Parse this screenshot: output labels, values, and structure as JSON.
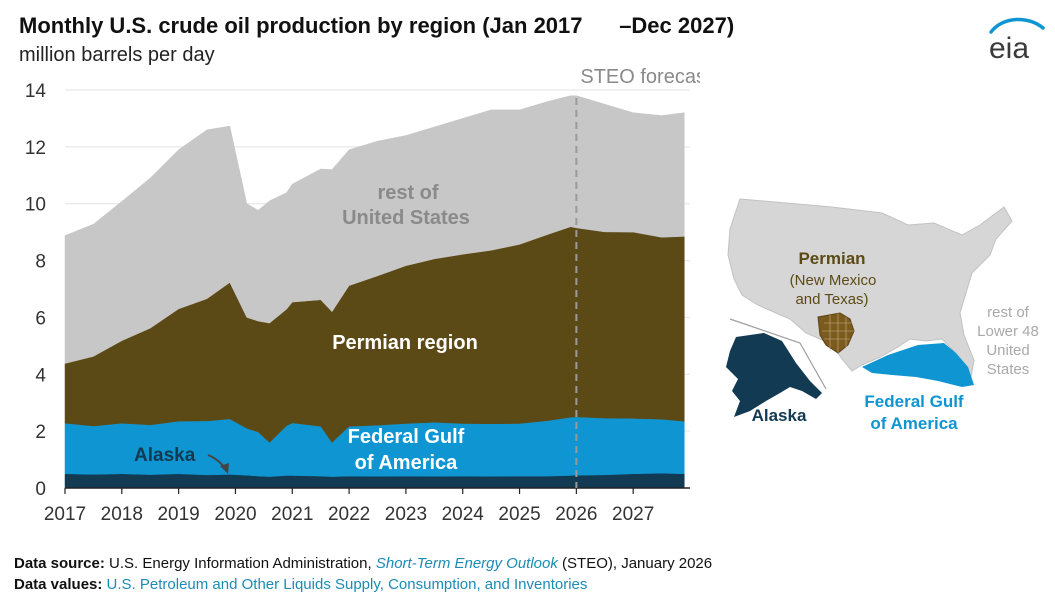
{
  "header": {
    "title": "Monthly U.S. crude oil production by region (Jan 2017      –Dec 2027)",
    "subtitle": "million barrels per day",
    "logo_text": "eia"
  },
  "colors": {
    "alaska": "#123a52",
    "gulf": "#0f95d2",
    "permian": "#5c4a16",
    "rest": "#c7c7c7",
    "forecast_line": "#9a9a9a",
    "text_dark": "#111111",
    "link": "#1c8bb5"
  },
  "chart_data": {
    "type": "area",
    "stacked": true,
    "x_unit": "year",
    "x": [
      2017,
      2017.5,
      2018,
      2018.5,
      2019,
      2019.5,
      2019.9,
      2020.2,
      2020.4,
      2020.6,
      2020.9,
      2021,
      2021.5,
      2021.7,
      2022,
      2022.5,
      2023,
      2023.5,
      2024,
      2024.5,
      2025,
      2025.5,
      2025.9,
      2026,
      2026.5,
      2027,
      2027.5,
      2027.9
    ],
    "series": [
      {
        "name": "Alaska",
        "values": [
          0.5,
          0.48,
          0.5,
          0.47,
          0.5,
          0.46,
          0.48,
          0.45,
          0.42,
          0.4,
          0.44,
          0.44,
          0.42,
          0.4,
          0.42,
          0.41,
          0.42,
          0.41,
          0.42,
          0.41,
          0.42,
          0.42,
          0.44,
          0.45,
          0.46,
          0.5,
          0.52,
          0.5
        ]
      },
      {
        "name": "Federal Gulf of America",
        "values": [
          1.78,
          1.7,
          1.78,
          1.75,
          1.85,
          1.9,
          1.95,
          1.65,
          1.55,
          1.2,
          1.75,
          1.85,
          1.75,
          1.2,
          1.75,
          1.8,
          1.85,
          1.9,
          1.85,
          1.85,
          1.85,
          1.95,
          2.05,
          2.05,
          2.0,
          1.95,
          1.9,
          1.85
        ]
      },
      {
        "name": "Permian region",
        "values": [
          2.1,
          2.45,
          2.9,
          3.4,
          3.95,
          4.3,
          4.8,
          3.9,
          3.9,
          4.2,
          4.1,
          4.25,
          4.45,
          4.6,
          4.95,
          5.25,
          5.55,
          5.75,
          5.95,
          6.1,
          6.3,
          6.55,
          6.7,
          6.65,
          6.55,
          6.55,
          6.4,
          6.5
        ]
      },
      {
        "name": "rest of United States",
        "values": [
          4.5,
          4.65,
          4.9,
          5.28,
          5.6,
          5.94,
          5.5,
          4.0,
          3.9,
          4.3,
          4.1,
          4.15,
          4.6,
          5.0,
          4.78,
          4.74,
          4.58,
          4.64,
          4.78,
          4.94,
          4.73,
          4.68,
          4.61,
          4.65,
          4.49,
          4.2,
          4.28,
          4.35
        ]
      }
    ],
    "series_labels": {
      "rest_line1": "rest of",
      "rest_line2": "United States",
      "permian": "Permian region",
      "gulf_line1": "Federal Gulf",
      "gulf_line2": "of America",
      "alaska": "Alaska"
    },
    "y_ticks": [
      "0",
      "2",
      "4",
      "6",
      "8",
      "10",
      "12",
      "14"
    ],
    "x_ticks": [
      "2017",
      "2018",
      "2019",
      "2020",
      "2021",
      "2022",
      "2023",
      "2024",
      "2025",
      "2026",
      "2027"
    ],
    "ylim": [
      0,
      14
    ],
    "xlim": [
      2017,
      2028
    ],
    "forecast_start": 2026,
    "forecast_label": "STEO forecast",
    "grid": true
  },
  "map": {
    "permian_label": "Permian",
    "permian_sub1": "(New Mexico",
    "permian_sub2": "and Texas)",
    "rest_line1": "rest of",
    "rest_line2": "Lower 48",
    "rest_line3": "United",
    "rest_line4": "States",
    "alaska_label": "Alaska",
    "gulf_line1": "Federal Gulf",
    "gulf_line2": "of America"
  },
  "footer": {
    "source_label": "Data source:",
    "source_text": "U.S. Energy Information Administration, ",
    "source_link": "Short-Term Energy Outlook",
    "source_tail": " (STEO), January 2026",
    "values_label": "Data values:",
    "values_link": "U.S. Petroleum and Other Liquids Supply, Consumption, and Inventories"
  }
}
